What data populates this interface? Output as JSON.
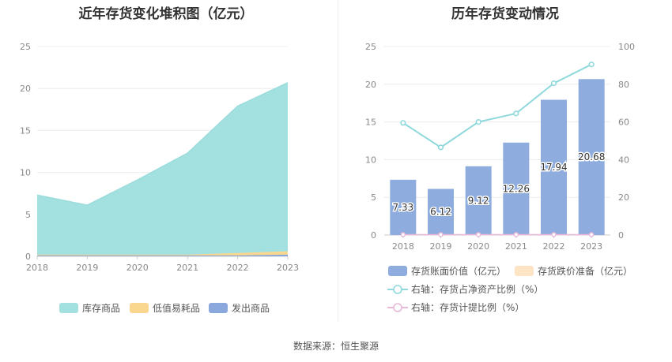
{
  "left": {
    "title": "近年存货变化堆积图（亿元）",
    "legend": [
      "库存商品",
      "低值易耗品",
      "发出商品"
    ],
    "colors": [
      "#a3e0e0",
      "#fad78f",
      "#8aa8dc"
    ],
    "ticks_y": [
      "0",
      "5",
      "10",
      "15",
      "20",
      "25"
    ],
    "ticks_x": [
      "2018",
      "2019",
      "2020",
      "2021",
      "2022",
      "2023"
    ]
  },
  "right": {
    "title": "历年存货变动情况",
    "legend": [
      "存货账面价值（亿元）",
      "存货跌价准备（亿元）",
      "右轴：存货占净资产比例（%）",
      "右轴：存货计提比例（%）"
    ],
    "colors": [
      "#8eadde",
      "#fde4c4",
      "#8fd9dd",
      "#e8b8d8"
    ],
    "ticks_y_left": [
      "0",
      "5",
      "10",
      "15",
      "20",
      "25"
    ],
    "ticks_y_right": [
      "0",
      "20",
      "40",
      "60",
      "80",
      "100"
    ],
    "ticks_x": [
      "2018",
      "2019",
      "2020",
      "2021",
      "2022",
      "2023"
    ],
    "bar_labels": [
      "7.33",
      "6.12",
      "9.12",
      "12.26",
      "17.94",
      "20.68"
    ]
  },
  "source": "数据来源：恒生聚源",
  "chart_data": [
    {
      "type": "area",
      "title": "近年存货变化堆积图（亿元）",
      "x": [
        "2018",
        "2019",
        "2020",
        "2021",
        "2022",
        "2023"
      ],
      "ylim": [
        0,
        25
      ],
      "stacked": true,
      "series": [
        {
          "name": "库存商品",
          "values": [
            7.1,
            5.9,
            8.9,
            12.1,
            17.5,
            20.1
          ]
        },
        {
          "name": "低值易耗品",
          "values": [
            0.1,
            0.1,
            0.1,
            0.1,
            0.3,
            0.4
          ]
        },
        {
          "name": "发出商品",
          "values": [
            0.1,
            0.1,
            0.1,
            0.1,
            0.1,
            0.2
          ]
        }
      ],
      "legend": "bottom"
    },
    {
      "type": "bar",
      "title": "历年存货变动情况",
      "categories": [
        "2018",
        "2019",
        "2020",
        "2021",
        "2022",
        "2023"
      ],
      "ylim": [
        0,
        25
      ],
      "y2lim": [
        0,
        100
      ],
      "series": [
        {
          "name": "存货账面价值（亿元）",
          "type": "bar",
          "axis": "left",
          "values": [
            7.33,
            6.12,
            9.12,
            12.26,
            17.94,
            20.68
          ]
        },
        {
          "name": "存货跌价准备（亿元）",
          "type": "bar",
          "axis": "left",
          "values": [
            0,
            0,
            0,
            0,
            0,
            0
          ]
        },
        {
          "name": "右轴：存货占净资产比例（%）",
          "type": "line",
          "axis": "right",
          "values": [
            59.5,
            46.5,
            60.0,
            64.5,
            80.5,
            90.5
          ]
        },
        {
          "name": "右轴：存货计提比例（%）",
          "type": "line",
          "axis": "right",
          "values": [
            0,
            0,
            0,
            0,
            0,
            0
          ]
        }
      ],
      "legend": "bottom"
    }
  ]
}
